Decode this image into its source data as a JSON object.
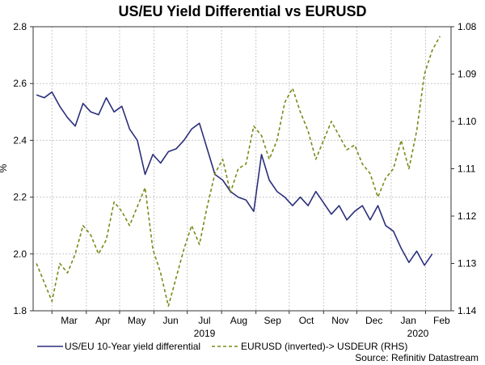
{
  "chart_data": {
    "type": "line",
    "title": "US/EU Yield Differential vs EURUSD",
    "ylabel": "%",
    "source": "Source: Refinitiv Datastream",
    "year_labels": [
      "2019",
      "2020"
    ],
    "x_tick_labels": [
      "Mar",
      "Apr",
      "May",
      "Jun",
      "Jul",
      "Aug",
      "Sep",
      "Oct",
      "Nov",
      "Dec",
      "Jan",
      "Feb"
    ],
    "left_axis": {
      "ylim": [
        1.8,
        2.8
      ],
      "ticks": [
        "1.8",
        "2.0",
        "2.2",
        "2.4",
        "2.6",
        "2.8"
      ]
    },
    "right_axis": {
      "ylim": [
        1.08,
        1.14
      ],
      "inverted": true,
      "ticks": [
        "1.08",
        "1.09",
        "1.10",
        "1.11",
        "1.12",
        "1.13",
        "1.14"
      ]
    },
    "series": [
      {
        "name": "US/EU 10-Year yield differential",
        "axis": "left",
        "color": "#2b2f7a",
        "dash": "solid",
        "x": [
          "2019-02-15",
          "2019-02-22",
          "2019-03-01",
          "2019-03-08",
          "2019-03-15",
          "2019-03-22",
          "2019-03-29",
          "2019-04-05",
          "2019-04-12",
          "2019-04-19",
          "2019-04-26",
          "2019-05-03",
          "2019-05-10",
          "2019-05-17",
          "2019-05-24",
          "2019-05-31",
          "2019-06-07",
          "2019-06-14",
          "2019-06-21",
          "2019-06-28",
          "2019-07-05",
          "2019-07-12",
          "2019-07-19",
          "2019-07-26",
          "2019-08-02",
          "2019-08-09",
          "2019-08-16",
          "2019-08-23",
          "2019-08-30",
          "2019-09-06",
          "2019-09-13",
          "2019-09-20",
          "2019-09-27",
          "2019-10-04",
          "2019-10-11",
          "2019-10-18",
          "2019-10-25",
          "2019-11-01",
          "2019-11-08",
          "2019-11-15",
          "2019-11-22",
          "2019-11-29",
          "2019-12-06",
          "2019-12-13",
          "2019-12-20",
          "2019-12-27",
          "2020-01-03",
          "2020-01-10",
          "2020-01-17",
          "2020-01-24",
          "2020-01-31",
          "2020-02-07"
        ],
        "values": [
          2.56,
          2.55,
          2.57,
          2.52,
          2.48,
          2.45,
          2.53,
          2.5,
          2.49,
          2.55,
          2.5,
          2.52,
          2.44,
          2.4,
          2.28,
          2.35,
          2.32,
          2.36,
          2.37,
          2.4,
          2.44,
          2.46,
          2.37,
          2.28,
          2.26,
          2.22,
          2.2,
          2.19,
          2.15,
          2.35,
          2.26,
          2.22,
          2.2,
          2.17,
          2.2,
          2.17,
          2.22,
          2.18,
          2.14,
          2.17,
          2.12,
          2.15,
          2.17,
          2.12,
          2.17,
          2.1,
          2.08,
          2.02,
          1.97,
          2.01,
          1.96,
          2.0
        ]
      },
      {
        "name": "EURUSD (inverted)-> USDEUR (RHS)",
        "axis": "right",
        "color": "#7a8a18",
        "dash": "dashed",
        "x": [
          "2019-02-15",
          "2019-02-22",
          "2019-03-01",
          "2019-03-08",
          "2019-03-15",
          "2019-03-22",
          "2019-03-29",
          "2019-04-05",
          "2019-04-12",
          "2019-04-19",
          "2019-04-26",
          "2019-05-03",
          "2019-05-10",
          "2019-05-17",
          "2019-05-24",
          "2019-05-31",
          "2019-06-07",
          "2019-06-14",
          "2019-06-21",
          "2019-06-28",
          "2019-07-05",
          "2019-07-12",
          "2019-07-19",
          "2019-07-26",
          "2019-08-02",
          "2019-08-09",
          "2019-08-16",
          "2019-08-23",
          "2019-08-30",
          "2019-09-06",
          "2019-09-13",
          "2019-09-20",
          "2019-09-27",
          "2019-10-04",
          "2019-10-11",
          "2019-10-18",
          "2019-10-25",
          "2019-11-01",
          "2019-11-08",
          "2019-11-15",
          "2019-11-22",
          "2019-11-29",
          "2019-12-06",
          "2019-12-13",
          "2019-12-20",
          "2019-12-27",
          "2020-01-03",
          "2020-01-10",
          "2020-01-17",
          "2020-01-24",
          "2020-01-31",
          "2020-02-07",
          "2020-02-14"
        ],
        "values": [
          1.13,
          1.134,
          1.138,
          1.13,
          1.132,
          1.128,
          1.122,
          1.124,
          1.128,
          1.125,
          1.117,
          1.119,
          1.122,
          1.118,
          1.114,
          1.127,
          1.132,
          1.139,
          1.133,
          1.127,
          1.122,
          1.126,
          1.118,
          1.111,
          1.108,
          1.115,
          1.11,
          1.109,
          1.101,
          1.103,
          1.108,
          1.104,
          1.096,
          1.093,
          1.098,
          1.102,
          1.108,
          1.104,
          1.1,
          1.103,
          1.106,
          1.105,
          1.109,
          1.111,
          1.116,
          1.112,
          1.11,
          1.104,
          1.11,
          1.102,
          1.09,
          1.085,
          1.082
        ]
      }
    ]
  }
}
